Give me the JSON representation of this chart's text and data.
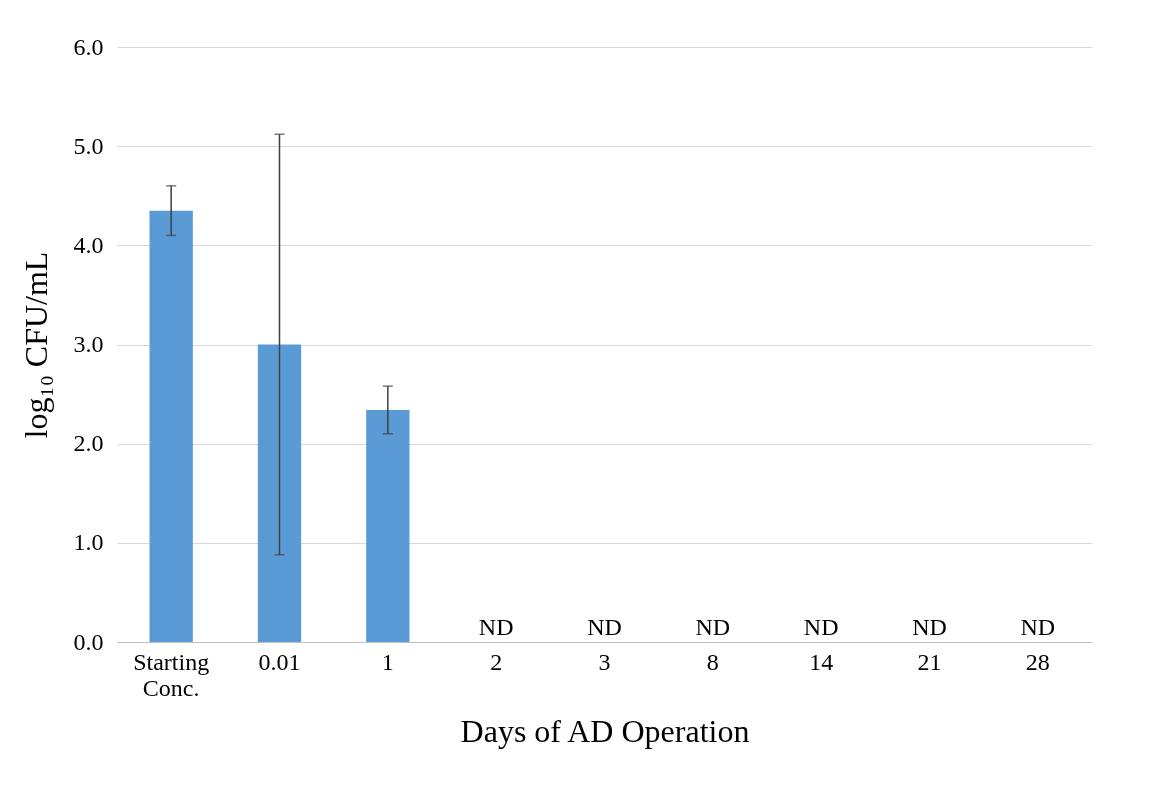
{
  "chart_data": {
    "type": "bar",
    "xlabel": "Days of AD Operation",
    "ylabel": "log₁₀ CFU/mL",
    "categories": [
      "Starting Conc.",
      "0.01",
      "1",
      "2",
      "3",
      "8",
      "14",
      "21",
      "28"
    ],
    "values": [
      4.35,
      3.0,
      2.34,
      0,
      0,
      0,
      0,
      0,
      0
    ],
    "errors": [
      0.25,
      2.12,
      0.24,
      null,
      null,
      null,
      null,
      null,
      null
    ],
    "value_labels": [
      null,
      null,
      null,
      "ND",
      "ND",
      "ND",
      "ND",
      "ND",
      "ND"
    ],
    "color": "#5b9bd5",
    "ylim": [
      0,
      6
    ],
    "yticks": [
      {
        "value": 0,
        "label": "0.0"
      },
      {
        "value": 1,
        "label": "1.0"
      },
      {
        "value": 2,
        "label": "2.0"
      },
      {
        "value": 3,
        "label": "3.0"
      },
      {
        "value": 4,
        "label": "4.0"
      },
      {
        "value": 5,
        "label": "5.0"
      },
      {
        "value": 6,
        "label": "6.0"
      }
    ],
    "grid": "y"
  }
}
